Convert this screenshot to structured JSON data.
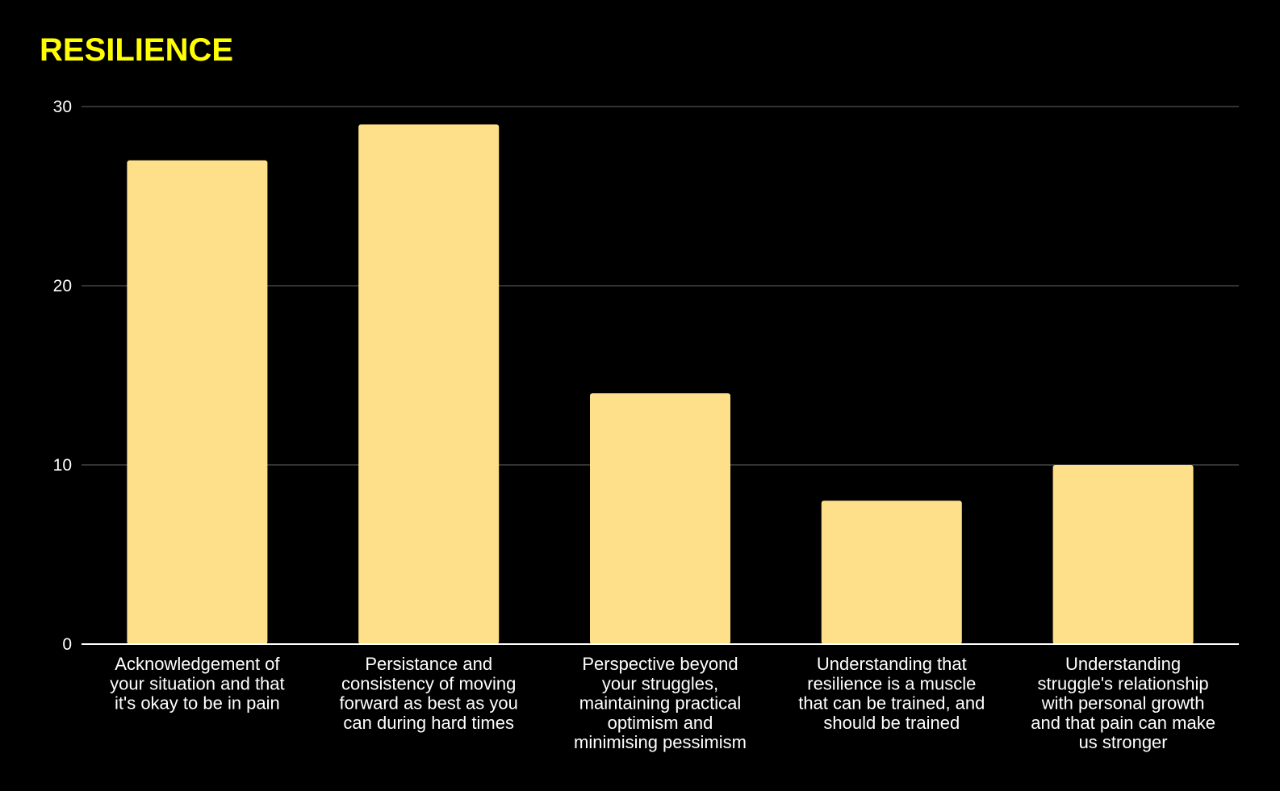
{
  "colors": {
    "background": "#000000",
    "title": "#FFFF00",
    "bar": "#FFE08A",
    "gridline": "#444444",
    "axis": "#FFFFFF",
    "text": "#FFFFFF"
  },
  "chart_data": {
    "type": "bar",
    "title": "RESILIENCE",
    "xlabel": "",
    "ylabel": "",
    "ylim": [
      0,
      30
    ],
    "yticks": [
      0,
      10,
      20,
      30
    ],
    "grid": true,
    "legend": "none",
    "categories": [
      "Acknowledgement of your situation and that it's okay to be in pain",
      "Persistance and consistency of moving forward as best as you can during hard times",
      "Perspective beyond your struggles, maintaining practical optimism and minimising pessimism",
      "Understanding that resilience is a muscle that can be trained, and should be trained",
      "Understanding struggle's relationship with personal growth and that pain can make us stronger"
    ],
    "category_lines": [
      [
        "Acknowledgement of",
        "your situation and that",
        "it's okay to be in pain"
      ],
      [
        "Persistance and",
        "consistency of moving",
        "forward as best as you",
        "can during hard times"
      ],
      [
        "Perspective beyond",
        "your struggles,",
        "maintaining practical",
        "optimism and",
        "minimising pessimism"
      ],
      [
        "Understanding that",
        "resilience is a muscle",
        "that can be trained, and",
        "should be trained"
      ],
      [
        "Understanding",
        "struggle's relationship",
        "with personal growth",
        "and that pain can make",
        "us stronger"
      ]
    ],
    "values": [
      27,
      29,
      14,
      8,
      10
    ]
  }
}
